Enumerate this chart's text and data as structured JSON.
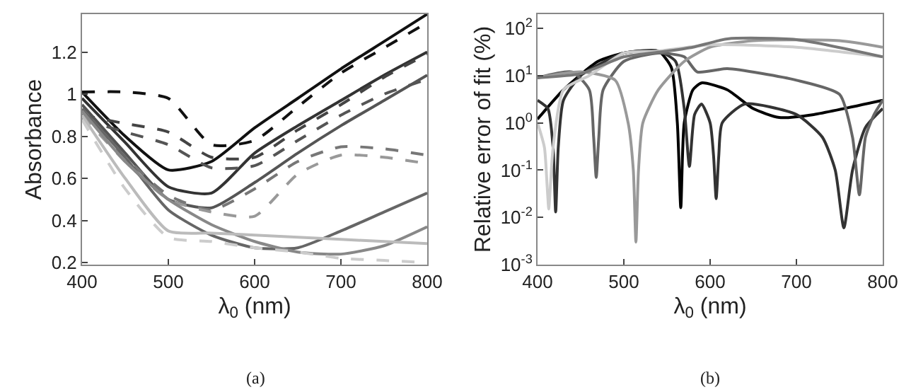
{
  "chart_data": [
    {
      "type": "line",
      "xlabel": "λ$_{0}$ (nm)",
      "ylabel": "Absorbance",
      "annotations": [
        "(a)"
      ],
      "xlim": [
        400,
        800
      ],
      "xticks": [
        400,
        500,
        600,
        700,
        800
      ],
      "ylim": [
        0.19,
        1.38
      ],
      "yticks": [
        0.2,
        0.4,
        0.6,
        0.8,
        1,
        1.2
      ],
      "grid": false,
      "marker": "none",
      "x": [
        400,
        450,
        500,
        550,
        600,
        650,
        700,
        750,
        800
      ],
      "series": [
        {
          "color": "#111111",
          "line_style": "solid",
          "values": [
            1.01,
            0.8,
            0.64,
            0.68,
            0.84,
            0.98,
            1.12,
            1.25,
            1.38
          ]
        },
        {
          "color": "#111111",
          "line_style": "dashed",
          "values": [
            1.01,
            1.01,
            0.98,
            0.76,
            0.78,
            0.94,
            1.1,
            1.22,
            1.34
          ]
        },
        {
          "color": "#333333",
          "line_style": "solid",
          "values": [
            0.98,
            0.77,
            0.56,
            0.53,
            0.72,
            0.85,
            0.97,
            1.09,
            1.2
          ]
        },
        {
          "color": "#444444",
          "line_style": "dashed",
          "values": [
            0.9,
            0.86,
            0.82,
            0.7,
            0.7,
            0.83,
            0.95,
            1.08,
            1.19
          ]
        },
        {
          "color": "#555555",
          "line_style": "dashed",
          "values": [
            0.88,
            0.82,
            0.76,
            0.65,
            0.66,
            0.78,
            0.9,
            1.0,
            1.07
          ]
        },
        {
          "color": "#555555",
          "line_style": "solid",
          "values": [
            0.95,
            0.72,
            0.5,
            0.46,
            0.58,
            0.72,
            0.85,
            0.97,
            1.09
          ]
        },
        {
          "color": "#777777",
          "line_style": "dashed",
          "values": [
            0.92,
            0.7,
            0.52,
            0.45,
            0.55,
            0.68,
            0.75,
            0.74,
            0.71
          ]
        },
        {
          "color": "#999999",
          "line_style": "dashed",
          "values": [
            0.9,
            0.68,
            0.5,
            0.44,
            0.42,
            0.62,
            0.71,
            0.7,
            0.67
          ]
        },
        {
          "color": "#666666",
          "line_style": "solid",
          "values": [
            0.93,
            0.7,
            0.45,
            0.33,
            0.27,
            0.27,
            0.35,
            0.44,
            0.53
          ]
        },
        {
          "color": "#888888",
          "line_style": "solid",
          "values": [
            0.92,
            0.68,
            0.5,
            0.38,
            0.3,
            0.25,
            0.24,
            0.28,
            0.37
          ]
        },
        {
          "color": "#bbbbbb",
          "line_style": "solid",
          "values": [
            0.9,
            0.6,
            0.35,
            0.34,
            0.33,
            0.32,
            0.31,
            0.3,
            0.29
          ]
        },
        {
          "color": "#cccccc",
          "line_style": "dashed",
          "values": [
            0.88,
            0.55,
            0.32,
            0.3,
            0.27,
            0.25,
            0.22,
            0.21,
            0.2
          ]
        }
      ]
    },
    {
      "type": "line",
      "xlabel": "λ$_{0}$ (nm)",
      "ylabel": "Relative error of fit (%)",
      "annotations": [
        "(b)"
      ],
      "log": "y",
      "xlim": [
        400,
        800
      ],
      "xticks": [
        400,
        500,
        600,
        700,
        800
      ],
      "ylim": [
        0.001,
        200
      ],
      "yticks": [
        {
          "value": 0.001,
          "label": "10$^{-3}$"
        },
        {
          "value": 0.01,
          "label": "10$^{-2}$"
        },
        {
          "value": 0.1,
          "label": "10$^{-1}$"
        },
        {
          "value": 1,
          "label": "10$^{0}$"
        },
        {
          "value": 10,
          "label": "10$^{1}$"
        },
        {
          "value": 100,
          "label": "10$^{2}$"
        }
      ],
      "grid": false,
      "marker": "none",
      "series": [
        {
          "color": "#000000",
          "line_style": "solid",
          "x": [
            400,
            430,
            470,
            500,
            540,
            555,
            562,
            566,
            570,
            580,
            590,
            620,
            650,
            680,
            720,
            800
          ],
          "values": [
            1.2,
            5,
            20,
            30,
            33,
            15,
            1,
            0.016,
            1,
            5,
            7,
            5,
            2,
            1.3,
            1.5,
            3
          ]
        },
        {
          "color": "#333333",
          "line_style": "solid",
          "x": [
            400,
            412,
            418,
            421,
            424,
            430,
            450,
            500,
            540,
            560,
            570,
            576,
            582,
            590,
            600,
            604,
            607,
            610,
            614,
            640,
            700,
            730,
            745,
            755,
            765,
            780,
            800
          ],
          "values": [
            3,
            2,
            0.3,
            0.013,
            0.3,
            3,
            10,
            30,
            33,
            20,
            2,
            0.12,
            1.5,
            2.5,
            1,
            0.2,
            0.025,
            0.2,
            1,
            2.5,
            1.5,
            0.5,
            0.1,
            0.006,
            0.1,
            0.8,
            2
          ]
        },
        {
          "color": "#666666",
          "line_style": "solid",
          "x": [
            400,
            440,
            460,
            465,
            468,
            471,
            476,
            500,
            540,
            570,
            585,
            620,
            700,
            750,
            765,
            773,
            780,
            790,
            800
          ],
          "values": [
            9,
            12,
            5,
            0.5,
            0.07,
            0.5,
            5,
            20,
            30,
            25,
            12,
            14,
            8,
            4,
            0.5,
            0.03,
            0.5,
            1.5,
            3
          ]
        },
        {
          "color": "#999999",
          "line_style": "solid",
          "x": [
            400,
            450,
            490,
            505,
            511,
            514,
            517,
            522,
            540,
            570,
            600,
            650,
            750,
            800
          ],
          "values": [
            9,
            12,
            8,
            1,
            0.1,
            0.003,
            0.1,
            1,
            5,
            20,
            40,
            55,
            55,
            40
          ]
        },
        {
          "color": "#cccccc",
          "line_style": "solid",
          "x": [
            400,
            408,
            411,
            413,
            415,
            418,
            430,
            460,
            500,
            540,
            600,
            700,
            800
          ],
          "values": [
            1,
            0.3,
            0.05,
            0.015,
            0.05,
            0.3,
            5,
            10,
            30,
            33,
            45,
            40,
            25
          ]
        },
        {
          "color": "#777777",
          "line_style": "solid",
          "x": [
            400,
            450,
            500,
            550,
            580,
            620,
            700,
            800
          ],
          "values": [
            9,
            11,
            25,
            33,
            40,
            60,
            58,
            25
          ]
        }
      ]
    }
  ]
}
